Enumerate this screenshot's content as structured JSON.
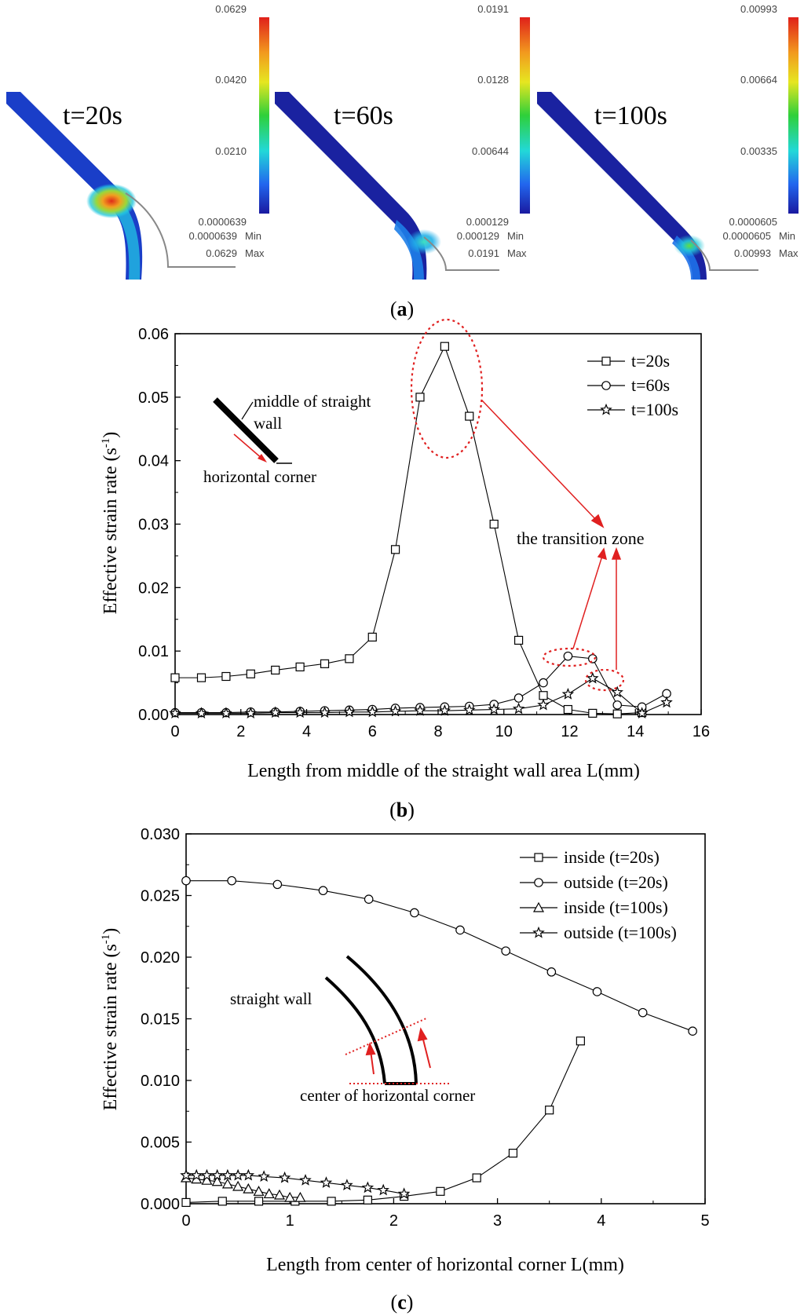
{
  "panel_a": {
    "label": "a",
    "snapshots": [
      {
        "time_label": "t=20s",
        "scale_ticks": [
          "0.0629",
          "0.0420",
          "0.0210",
          "0.0000639"
        ],
        "min_value": "0.0000639",
        "max_value": "0.0629",
        "min_label": "Min",
        "max_label": "Max"
      },
      {
        "time_label": "t=60s",
        "scale_ticks": [
          "0.0191",
          "0.0128",
          "0.00644",
          "0.000129"
        ],
        "min_value": "0.000129",
        "max_value": "0.0191",
        "min_label": "Min",
        "max_label": "Max"
      },
      {
        "time_label": "t=100s",
        "scale_ticks": [
          "0.00993",
          "0.00664",
          "0.00335",
          "0.0000605"
        ],
        "min_value": "0.0000605",
        "max_value": "0.00993",
        "min_label": "Min",
        "max_label": "Max"
      }
    ]
  },
  "chart_data": [
    {
      "id": "b",
      "type": "line",
      "label": "b",
      "xlabel": "Length from middle of the straight wall area  L(mm)",
      "ylabel": "Effective strain rate  (s",
      "ylabel_sup": "-1",
      "ylabel_end": ")",
      "xlim": [
        0,
        16
      ],
      "ylim": [
        0,
        0.06
      ],
      "xticks": [
        "0",
        "2",
        "4",
        "6",
        "8",
        "10",
        "12",
        "14",
        "16"
      ],
      "yticks": [
        "0.00",
        "0.01",
        "0.02",
        "0.03",
        "0.04",
        "0.05",
        "0.06"
      ],
      "legend_position": "top-right",
      "series": [
        {
          "name": "t=20s",
          "marker": "square",
          "x": [
            0,
            0.8,
            1.55,
            2.3,
            3.05,
            3.8,
            4.55,
            5.3,
            6.0,
            6.7,
            7.45,
            8.2,
            8.95,
            9.7,
            10.45,
            11.2,
            11.95,
            12.7,
            13.45,
            14.2
          ],
          "y": [
            0.0058,
            0.0058,
            0.006,
            0.0064,
            0.007,
            0.0075,
            0.008,
            0.0088,
            0.0122,
            0.026,
            0.05,
            0.058,
            0.047,
            0.03,
            0.0117,
            0.003,
            0.0008,
            0.0002,
            0.0001,
            0.0003
          ]
        },
        {
          "name": "t=60s",
          "marker": "circle",
          "x": [
            0,
            0.8,
            1.55,
            2.3,
            3.05,
            3.8,
            4.55,
            5.3,
            6.0,
            6.7,
            7.45,
            8.2,
            8.95,
            9.7,
            10.45,
            11.2,
            11.95,
            12.7,
            13.45,
            14.2,
            14.95
          ],
          "y": [
            0.0003,
            0.0003,
            0.0003,
            0.0004,
            0.0004,
            0.0005,
            0.0006,
            0.0007,
            0.0008,
            0.001,
            0.0011,
            0.0012,
            0.0013,
            0.0016,
            0.0026,
            0.005,
            0.0092,
            0.0088,
            0.0015,
            0.0012,
            0.0033
          ]
        },
        {
          "name": "t=100s",
          "marker": "star",
          "x": [
            0,
            0.8,
            1.55,
            2.3,
            3.05,
            3.8,
            4.55,
            5.3,
            6.0,
            6.7,
            7.45,
            8.2,
            8.95,
            9.7,
            10.45,
            11.2,
            11.95,
            12.7,
            13.45,
            14.2,
            14.95
          ],
          "y": [
            0.0002,
            0.0002,
            0.0002,
            0.0002,
            0.0003,
            0.0003,
            0.0003,
            0.0004,
            0.0004,
            0.0005,
            0.0006,
            0.0006,
            0.0007,
            0.0008,
            0.0009,
            0.0015,
            0.0032,
            0.0057,
            0.0035,
            0.0002,
            0.0019
          ]
        }
      ],
      "annotations": {
        "transition_zone": "the transition zone",
        "inset_top": "middle of straight",
        "inset_top2": "wall",
        "inset_bottom": "horizontal corner"
      }
    },
    {
      "id": "c",
      "type": "line",
      "label": "c",
      "xlabel": "Length from center of horizontal corner  L(mm)",
      "ylabel": "Effective strain rate  (s",
      "ylabel_sup": "-1",
      "ylabel_end": ")",
      "xlim": [
        0,
        5
      ],
      "ylim": [
        0,
        0.03
      ],
      "xticks": [
        "0",
        "1",
        "2",
        "3",
        "4",
        "5"
      ],
      "yticks": [
        "0.000",
        "0.005",
        "0.010",
        "0.015",
        "0.020",
        "0.025",
        "0.030"
      ],
      "legend_position": "top-right",
      "series": [
        {
          "name": "inside (t=20s)",
          "marker": "square",
          "x": [
            0,
            0.35,
            0.7,
            1.05,
            1.4,
            1.75,
            2.1,
            2.45,
            2.8,
            3.15,
            3.5,
            3.8
          ],
          "y": [
            0.0001,
            0.0002,
            0.0002,
            0.0002,
            0.0002,
            0.0003,
            0.0006,
            0.001,
            0.0021,
            0.0041,
            0.0076,
            0.0132
          ]
        },
        {
          "name": "outside (t=20s)",
          "marker": "circle",
          "x": [
            0,
            0.44,
            0.88,
            1.32,
            1.76,
            2.2,
            2.64,
            3.08,
            3.52,
            3.96,
            4.4,
            4.88
          ],
          "y": [
            0.0262,
            0.0262,
            0.0259,
            0.0254,
            0.0247,
            0.0236,
            0.0222,
            0.0205,
            0.0188,
            0.0172,
            0.0155,
            0.014
          ]
        },
        {
          "name": "inside (t=100s)",
          "marker": "triangle",
          "x": [
            0,
            0.1,
            0.2,
            0.3,
            0.4,
            0.5,
            0.6,
            0.7,
            0.8,
            0.9,
            1.0,
            1.1
          ],
          "y": [
            0.0021,
            0.002,
            0.0019,
            0.0018,
            0.0016,
            0.0014,
            0.0012,
            0.001,
            0.0008,
            0.0007,
            0.0005,
            0.0005
          ]
        },
        {
          "name": "outside (t=100s)",
          "marker": "star",
          "x": [
            0,
            0.1,
            0.2,
            0.3,
            0.4,
            0.5,
            0.6,
            0.75,
            0.95,
            1.15,
            1.35,
            1.55,
            1.75,
            1.9,
            2.1
          ],
          "y": [
            0.0023,
            0.0023,
            0.0023,
            0.0023,
            0.0023,
            0.0023,
            0.0023,
            0.0022,
            0.0021,
            0.0019,
            0.0017,
            0.0015,
            0.0013,
            0.0011,
            0.0008
          ]
        }
      ],
      "annotations": {
        "straight_wall": "straight  wall",
        "center_corner": "center of horizontal corner"
      }
    }
  ]
}
